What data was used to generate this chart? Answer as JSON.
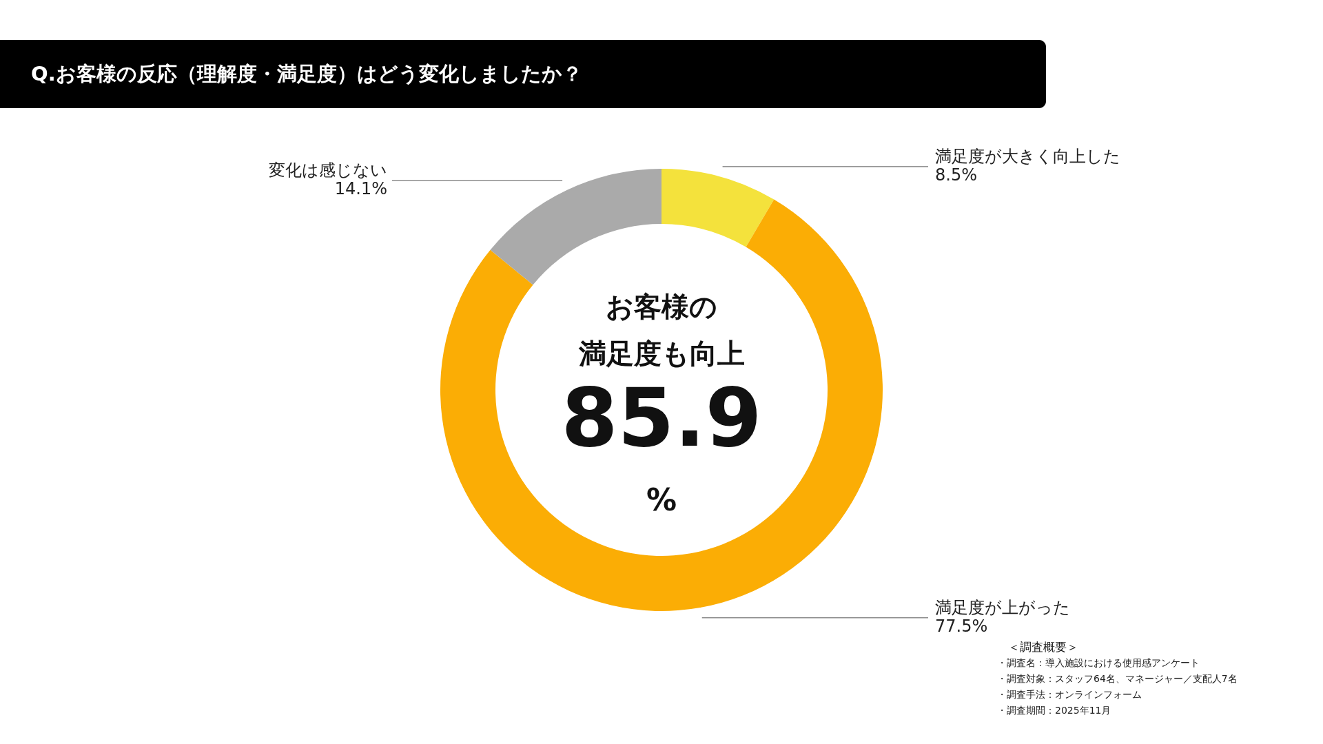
{
  "chart_data": {
    "type": "donut",
    "title": "Q.お客様の反応（理解度・満足度）はどう変化しましたか？",
    "categories": [
      "満足度が大きく向上した",
      "満足度が上がった",
      "変化は感じない"
    ],
    "values": [
      8.5,
      77.5,
      14.1
    ],
    "value_labels": [
      "8.5%",
      "77.5%",
      "14.1%"
    ],
    "colors": [
      "#f4e23c",
      "#fbad05",
      "#aaaaaa"
    ],
    "annotations": [
      "お客様の",
      "満足度も向上",
      "85.9",
      "%",
      "＜調査概要＞",
      "・調査名：導入施設における使用感アンケート",
      "・調査対象：スタッフ64名、マネージャー／支配人7名",
      "・調査手法：オンラインフォーム",
      "・調査期間：2025年11月"
    ]
  }
}
